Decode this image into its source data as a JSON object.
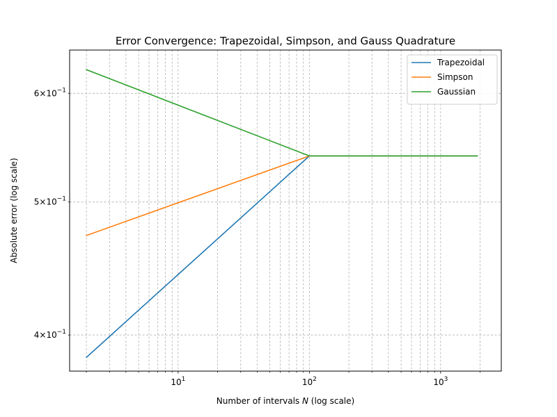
{
  "chart_data": {
    "type": "line",
    "title": "Error Convergence: Trapezoidal, Simpson, and Gauss Quadrature",
    "xlabel": "Number of intervals N (log scale)",
    "ylabel": "Absolute error (log scale)",
    "xscale": "log",
    "yscale": "log",
    "xlim": [
      1.49,
      2900
    ],
    "ylim": [
      0.3765,
      0.6452
    ],
    "x_ticks": [
      {
        "value": 10,
        "base": "10",
        "exp": "1"
      },
      {
        "value": 100,
        "base": "10",
        "exp": "2"
      },
      {
        "value": 1000,
        "base": "10",
        "exp": "3"
      }
    ],
    "y_ticks": [
      {
        "value": 0.4,
        "mant": "4",
        "base": "10",
        "exp": "−1"
      },
      {
        "value": 0.5,
        "mant": "5",
        "base": "10",
        "exp": "−1"
      },
      {
        "value": 0.6,
        "mant": "6",
        "base": "10",
        "exp": "−1"
      }
    ],
    "grid": true,
    "grid_minor": true,
    "legend_position": "top-right",
    "series": [
      {
        "name": "Trapezoidal",
        "color": "#1f77b4",
        "x": [
          2,
          100,
          1900
        ],
        "y": [
          0.3853,
          0.5402,
          0.5402
        ]
      },
      {
        "name": "Simpson",
        "color": "#ff7f0e",
        "x": [
          2,
          100,
          1900
        ],
        "y": [
          0.4727,
          0.5402,
          0.5402
        ]
      },
      {
        "name": "Gaussian",
        "color": "#2ca02c",
        "x": [
          2,
          100,
          1900
        ],
        "y": [
          0.6243,
          0.5402,
          0.5402
        ]
      }
    ]
  }
}
